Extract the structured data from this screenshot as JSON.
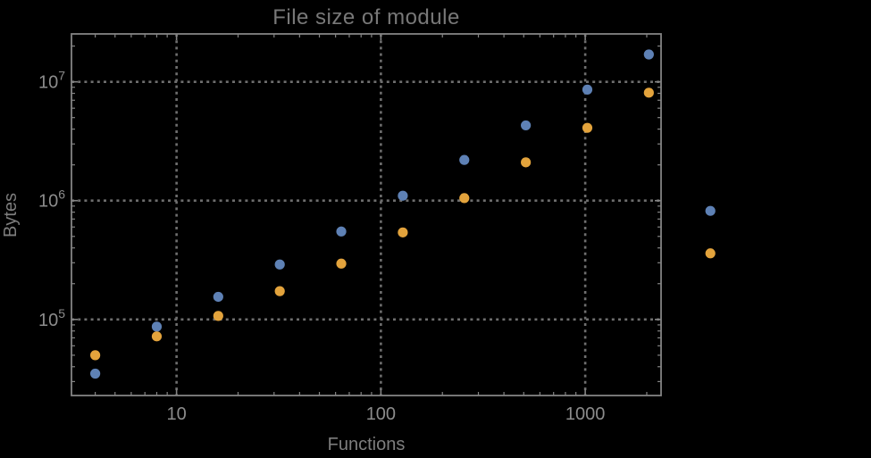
{
  "page": {
    "background": "#000000"
  },
  "chart_data": {
    "type": "scatter",
    "title": "File size of module",
    "xlabel": "Functions",
    "ylabel": "Bytes",
    "x_scale": "log",
    "y_scale": "log",
    "x_range": [
      3.06,
      2350
    ],
    "y_range": [
      22900,
      25300000
    ],
    "grid": "dotted lines at decade ticks, both axes",
    "legend": "none",
    "x": [
      4,
      8,
      16,
      32,
      64,
      128,
      256,
      512,
      1024,
      2048,
      4096
    ],
    "series": [
      {
        "name": "series-1-blue",
        "color": "#5e81b5",
        "values": [
          35000,
          87000,
          155000,
          290000,
          550000,
          1100000,
          2200000,
          4300000,
          8600000,
          17000000,
          820000
        ]
      },
      {
        "name": "series-2-orange",
        "color": "#e3a33c",
        "values": [
          50000,
          72000,
          107000,
          173000,
          295000,
          540000,
          1050000,
          2100000,
          4100000,
          8100000,
          360000
        ]
      }
    ],
    "x_tick_values": [
      10,
      100,
      1000
    ],
    "x_tick_labels": [
      "10",
      "100",
      "1000"
    ],
    "y_tick_values": [
      100000,
      1000000,
      10000000
    ],
    "y_tick_labels": [
      {
        "base": "10",
        "exp": "5"
      },
      {
        "base": "10",
        "exp": "6"
      },
      {
        "base": "10",
        "exp": "7"
      }
    ]
  },
  "colors": {
    "frame": "#848484",
    "grid": "#6e6e6e",
    "tick": "#848484",
    "tick_label": "#8c8c8c",
    "title": "#787878",
    "axis_label": "#7e7e7e",
    "background": "#000000"
  }
}
